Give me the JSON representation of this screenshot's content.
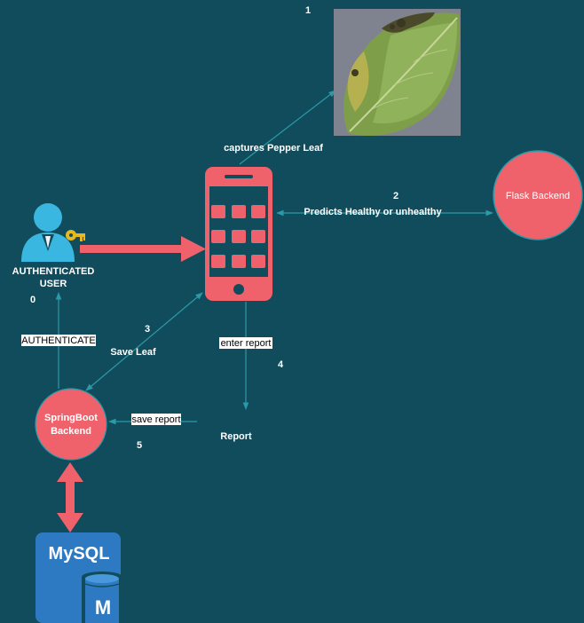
{
  "colors": {
    "background": "#114c5c",
    "accent": "#f0626b",
    "connector": "#2a9aa8",
    "mysql_blue": "#2d7ac2",
    "user_cyan": "#3ab7e0",
    "key_gold": "#e8b821"
  },
  "steps": {
    "s0": "0",
    "s1": "1",
    "s2": "2",
    "s3": "3",
    "s4": "4",
    "s5": "5"
  },
  "nodes": {
    "user": {
      "line1": "AUTHENTICATED",
      "line2": "USER",
      "icon": "user-key-icon"
    },
    "phone": {
      "icon": "smartphone-icon"
    },
    "leaf": {
      "icon": "pepper-leaf-photo"
    },
    "flask": {
      "label": "Flask Backend"
    },
    "springboot": {
      "line1": "SpringBoot",
      "line2": "Backend"
    },
    "mysql": {
      "label": "MySQL",
      "badge": "M",
      "icon": "database-icon"
    },
    "report": {
      "label": "Report"
    }
  },
  "edges": {
    "captures": "captures Pepper Leaf",
    "predicts": "Predicts Healthy or unhealthy",
    "save_leaf": "Save Leaf",
    "authenticate": "AUTHENTICATE",
    "enter_report": "enter  report",
    "save_report": "save report"
  }
}
